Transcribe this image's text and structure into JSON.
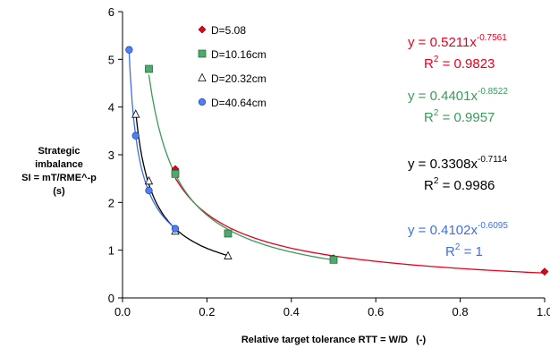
{
  "chart_data": {
    "type": "scatter",
    "xlabel": "Relative target tolerance RTT = W/D   (-)",
    "ylabel_lines": [
      "Strategic",
      "imbalance",
      "SI = mT/RME^-p",
      "(s)"
    ],
    "xlim": [
      0,
      1.0
    ],
    "ylim": [
      0,
      6
    ],
    "x_ticks": [
      "0.0",
      "0.2",
      "0.4",
      "0.6",
      "0.8",
      "1.0"
    ],
    "x_tick_values": [
      0,
      0.2,
      0.4,
      0.6,
      0.8,
      1.0
    ],
    "y_ticks": [
      "0",
      "1",
      "2",
      "3",
      "4",
      "5",
      "6"
    ],
    "y_tick_values": [
      0,
      1,
      2,
      3,
      4,
      5,
      6
    ],
    "grid": false,
    "legend_position": "top-left",
    "series": [
      {
        "name": "D=5.08",
        "color": "#e8001c",
        "marker": "diamond",
        "x": [
          0.125,
          0.5,
          1.0
        ],
        "y": [
          2.7,
          0.83,
          0.55
        ],
        "fit": {
          "a": 0.5211,
          "b": -0.7561,
          "x_from": 0.125,
          "x_to": 1.0,
          "equation_prefix": "y = 0.5211x",
          "exponent": "-0.7561",
          "r2_prefix": "R",
          "r2_exp": "2",
          "r2_suffix": " = 0.9823"
        }
      },
      {
        "name": "D=10.16cm",
        "color": "#3a9a5b",
        "marker": "square",
        "x": [
          0.0625,
          0.125,
          0.25,
          0.5
        ],
        "y": [
          4.8,
          2.6,
          1.35,
          0.8
        ],
        "fit": {
          "a": 0.4401,
          "b": -0.8522,
          "x_from": 0.0625,
          "x_to": 0.5,
          "equation_prefix": "y = 0.4401x",
          "exponent": "-0.8522",
          "r2_prefix": "R",
          "r2_exp": "2",
          "r2_suffix": " = 0.9957"
        }
      },
      {
        "name": "D=20.32cm",
        "color": "#000000",
        "marker": "triangle",
        "x": [
          0.03125,
          0.0625,
          0.125,
          0.25
        ],
        "y": [
          3.85,
          2.45,
          1.4,
          0.88
        ],
        "fit": {
          "a": 0.3308,
          "b": -0.7114,
          "x_from": 0.03125,
          "x_to": 0.25,
          "equation_prefix": "y = 0.3308x",
          "exponent": "-0.7114",
          "r2_prefix": "R",
          "r2_exp": "2",
          "r2_suffix": " = 0.9986"
        }
      },
      {
        "name": "D=40.64cm",
        "color": "#3f6fe0",
        "marker": "circle",
        "x": [
          0.015625,
          0.03125,
          0.0625,
          0.125
        ],
        "y": [
          5.2,
          3.4,
          2.25,
          1.45
        ],
        "fit": {
          "a": 0.4102,
          "b": -0.6095,
          "x_from": 0.015625,
          "x_to": 0.125,
          "equation_prefix": "y = 0.4102x",
          "exponent": "-0.6095",
          "r2_prefix": "R",
          "r2_exp": "2",
          "r2_suffix": " = 1"
        }
      }
    ]
  }
}
